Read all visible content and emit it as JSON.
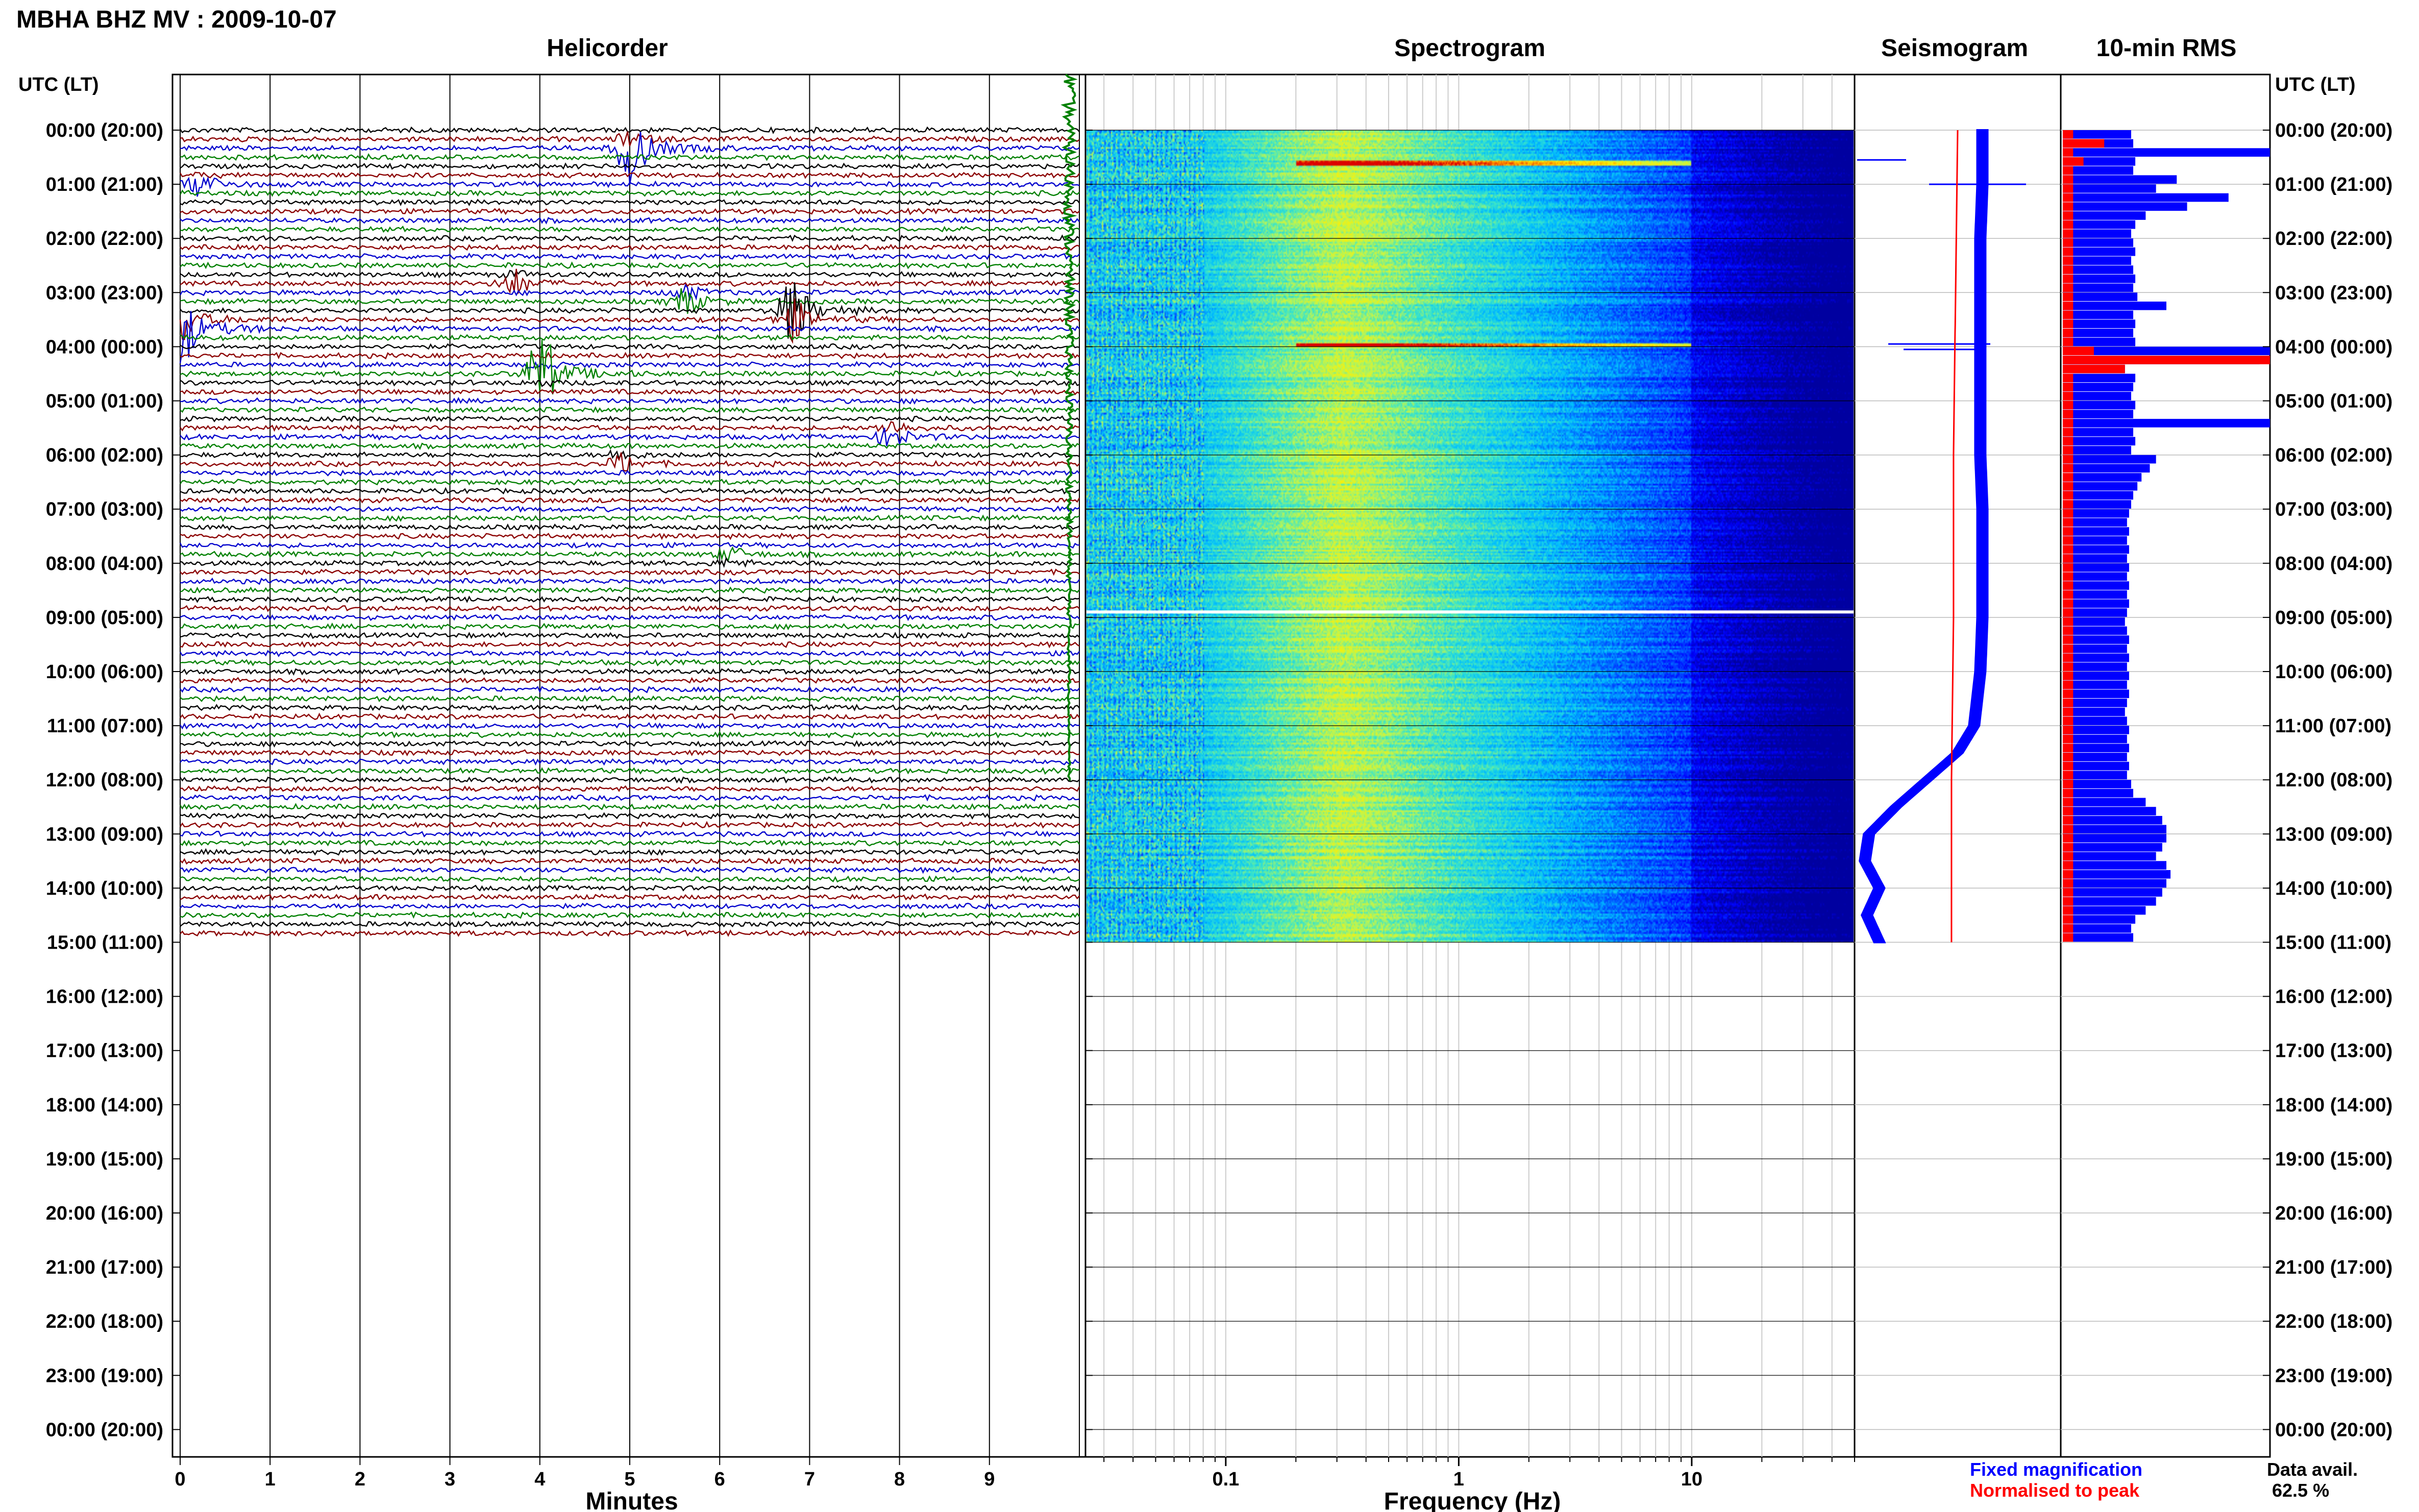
{
  "title": "MBHA BHZ MV : 2009-10-07",
  "panels": {
    "helicorder": "Helicorder",
    "spectrogram": "Spectrogram",
    "seismogram": "Seismogram",
    "rms": "10-min RMS"
  },
  "time_axis_title": "UTC (LT)",
  "legend": {
    "fixed": "Fixed magnification",
    "normalised": "Normalised to peak",
    "fixed_color": "#0000ff",
    "normalised_color": "#ff0000"
  },
  "data_avail": {
    "label": "Data avail.",
    "value": "62.5 %"
  },
  "colors": {
    "trace1": "#000000",
    "trace2": "#8b0000",
    "trace3": "#0000cd",
    "trace4": "#008000"
  },
  "chart_data": [
    {
      "type": "line",
      "panel": "helicorder",
      "xlabel": "Minutes",
      "x_ticks": [
        0,
        1,
        2,
        3,
        4,
        5,
        6,
        7,
        8,
        9
      ],
      "xlim": [
        0,
        10
      ],
      "y_ticks": [
        "00:00 (20:00)",
        "01:00 (21:00)",
        "02:00 (22:00)",
        "03:00 (23:00)",
        "04:00 (00:00)",
        "05:00 (01:00)",
        "06:00 (02:00)",
        "07:00 (03:00)",
        "08:00 (04:00)",
        "09:00 (05:00)",
        "10:00 (06:00)",
        "11:00 (07:00)",
        "12:00 (08:00)",
        "13:00 (09:00)",
        "14:00 (10:00)",
        "15:00 (11:00)",
        "16:00 (12:00)",
        "17:00 (13:00)",
        "18:00 (14:00)",
        "19:00 (15:00)",
        "20:00 (16:00)",
        "21:00 (17:00)",
        "22:00 (18:00)",
        "23:00 (19:00)",
        "00:00 (20:00)"
      ],
      "lines_per_hour": 6,
      "data_hours": 15,
      "events": [
        {
          "hour": 0.3,
          "minute": 5.0,
          "amp": 2.5
        },
        {
          "hour": 1.0,
          "minute": 0.2,
          "amp": 0.8
        },
        {
          "hour": 2.8,
          "minute": 3.7,
          "amp": 0.8
        },
        {
          "hour": 3.1,
          "minute": 5.6,
          "amp": 1.2
        },
        {
          "hour": 3.6,
          "minute": 0.0,
          "amp": 3.5
        },
        {
          "hour": 3.4,
          "minute": 6.8,
          "amp": 3.0
        },
        {
          "hour": 4.5,
          "minute": 4.0,
          "amp": 2.4
        },
        {
          "hour": 5.6,
          "minute": 7.9,
          "amp": 1.0
        },
        {
          "hour": 6.1,
          "minute": 4.9,
          "amp": 0.8
        },
        {
          "hour": 7.9,
          "minute": 6.1,
          "amp": 0.6
        }
      ]
    },
    {
      "type": "heatmap",
      "panel": "spectrogram",
      "xlabel": "Frequency (Hz)",
      "x_scale": "log",
      "xlim": [
        0.025,
        50
      ],
      "x_ticks": [
        0.1,
        1,
        10
      ],
      "data_hours": 15,
      "peak_band_hz": [
        0.2,
        0.5
      ],
      "gap_hour": 8.9
    },
    {
      "type": "line",
      "panel": "seismogram",
      "series": [
        {
          "name": "Fixed magnification",
          "color": "#0000ff",
          "hours": [
            0,
            1,
            2,
            3,
            4,
            5,
            6,
            7,
            8,
            9,
            10,
            11,
            11.5,
            12,
            12.5,
            13,
            13.5,
            14,
            14.5,
            15
          ],
          "values": [
            0.62,
            0.62,
            0.61,
            0.61,
            0.61,
            0.61,
            0.61,
            0.62,
            0.62,
            0.62,
            0.61,
            0.58,
            0.5,
            0.35,
            0.2,
            0.07,
            0.05,
            0.12,
            0.06,
            0.12
          ]
        },
        {
          "name": "Normalised to peak",
          "color": "#ff0000",
          "hours": [
            0,
            3,
            6,
            9,
            12,
            15
          ],
          "values": [
            0.5,
            0.49,
            0.48,
            0.48,
            0.47,
            0.47
          ]
        }
      ]
    },
    {
      "type": "bar",
      "panel": "rms",
      "bin_minutes": 10,
      "series": [
        {
          "name": "Fixed magnification",
          "color": "#0000ff",
          "xlim": [
            0,
            1
          ],
          "values": [
            0.33,
            0.34,
            1.0,
            0.35,
            0.34,
            0.55,
            0.45,
            0.8,
            0.6,
            0.4,
            0.35,
            0.33,
            0.34,
            0.35,
            0.33,
            0.34,
            0.35,
            0.34,
            0.36,
            0.5,
            0.34,
            0.35,
            0.34,
            0.35,
            1.0,
            0.95,
            0.3,
            0.35,
            0.34,
            0.33,
            0.35,
            0.34,
            1.0,
            0.34,
            0.35,
            0.33,
            0.45,
            0.42,
            0.38,
            0.36,
            0.34,
            0.33,
            0.32,
            0.31,
            0.32,
            0.31,
            0.32,
            0.31,
            0.32,
            0.31,
            0.32,
            0.31,
            0.32,
            0.31,
            0.3,
            0.31,
            0.32,
            0.31,
            0.32,
            0.31,
            0.32,
            0.31,
            0.32,
            0.31,
            0.3,
            0.31,
            0.32,
            0.31,
            0.32,
            0.31,
            0.32,
            0.31,
            0.33,
            0.34,
            0.4,
            0.45,
            0.48,
            0.5,
            0.5,
            0.48,
            0.45,
            0.5,
            0.52,
            0.5,
            0.48,
            0.45,
            0.4,
            0.35,
            0.33,
            0.34
          ]
        },
        {
          "name": "Normalised to peak",
          "color": "#ff0000",
          "xlim": [
            0,
            1
          ],
          "values": [
            0.05,
            0.2,
            0.05,
            0.1,
            0.05,
            0.05,
            0.05,
            0.05,
            0.05,
            0.05,
            0.05,
            0.05,
            0.05,
            0.05,
            0.05,
            0.05,
            0.05,
            0.05,
            0.05,
            0.05,
            0.05,
            0.05,
            0.05,
            0.05,
            0.15,
            1.0,
            0.3,
            0.05,
            0.05,
            0.05,
            0.05,
            0.05,
            0.05,
            0.05,
            0.05,
            0.05,
            0.05,
            0.05,
            0.05,
            0.05,
            0.05,
            0.05,
            0.05,
            0.05,
            0.05,
            0.05,
            0.05,
            0.05,
            0.05,
            0.05,
            0.05,
            0.05,
            0.05,
            0.05,
            0.05,
            0.05,
            0.05,
            0.05,
            0.05,
            0.05,
            0.05,
            0.05,
            0.05,
            0.05,
            0.05,
            0.05,
            0.05,
            0.05,
            0.05,
            0.05,
            0.05,
            0.05,
            0.05,
            0.05,
            0.05,
            0.05,
            0.05,
            0.05,
            0.05,
            0.05,
            0.05,
            0.05,
            0.05,
            0.05,
            0.05,
            0.05,
            0.05,
            0.05,
            0.05,
            0.05
          ]
        }
      ]
    }
  ]
}
